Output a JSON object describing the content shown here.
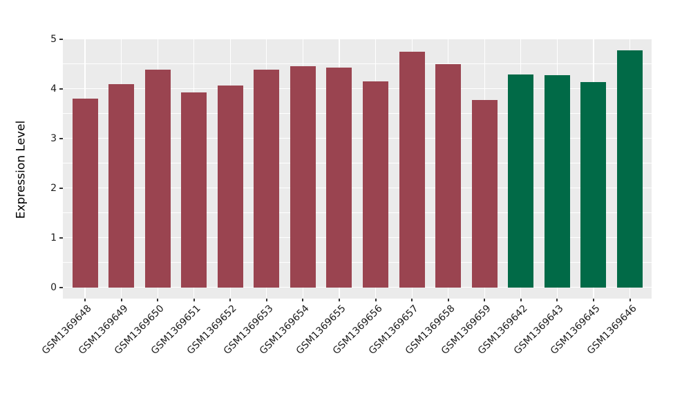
{
  "figure": {
    "title": "",
    "background_color": "#ffffff"
  },
  "chart_data": {
    "type": "bar",
    "title": "",
    "xlabel": "",
    "ylabel": "Expression Level",
    "ylim": [
      0,
      5
    ],
    "yticks": [
      0,
      1,
      2,
      3,
      4,
      5
    ],
    "grid": "horizontal major+minor and vertical major white gridlines on gray panel",
    "legend_position": "none",
    "panel_background": "#ebebeb",
    "grid_color": "#ffffff",
    "tick_color": "#333333",
    "text_color": "#1a1a1a",
    "categories": [
      "GSM1369648",
      "GSM1369649",
      "GSM1369650",
      "GSM1369651",
      "GSM1369652",
      "GSM1369653",
      "GSM1369654",
      "GSM1369655",
      "GSM1369656",
      "GSM1369657",
      "GSM1369658",
      "GSM1369659",
      "GSM1369642",
      "GSM1369643",
      "GSM1369645",
      "GSM1369646"
    ],
    "values": [
      3.8,
      4.09,
      4.38,
      3.93,
      4.07,
      4.39,
      4.46,
      4.43,
      4.15,
      4.75,
      4.5,
      3.77,
      4.29,
      4.27,
      4.13,
      4.77
    ],
    "groups": [
      "red",
      "red",
      "red",
      "red",
      "red",
      "red",
      "red",
      "red",
      "red",
      "red",
      "red",
      "red",
      "green",
      "green",
      "green",
      "green"
    ],
    "group_colors": {
      "red": "#9a4450",
      "green": "#016a47"
    }
  }
}
